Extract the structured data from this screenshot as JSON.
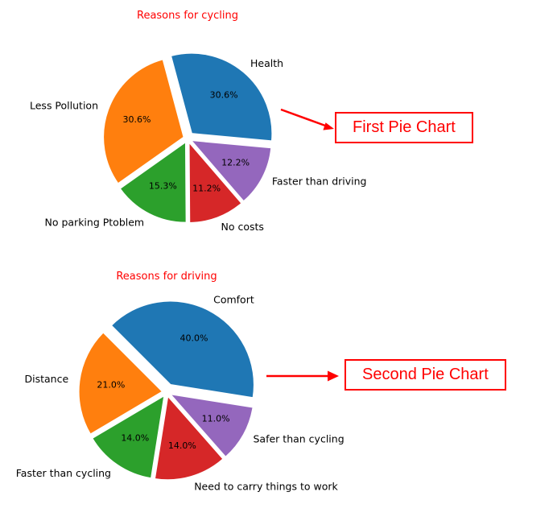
{
  "figure": {
    "background": "#ffffff",
    "accent_color": "#ff0000"
  },
  "chart_data": [
    {
      "type": "pie",
      "title": "Reasons for cycling",
      "title_color": "#ff0000",
      "labels": [
        "Health",
        "Faster than driving",
        "No costs",
        "No parking Ptoblem",
        "Less Pollution"
      ],
      "values": [
        30.6,
        12.2,
        11.2,
        15.3,
        30.6
      ],
      "pct_labels": [
        "30.6%",
        "12.2%",
        "11.2%",
        "15.3%",
        "30.6%"
      ],
      "colors": [
        "#1f77b4",
        "#9467bd",
        "#d62728",
        "#2ca02c",
        "#ff7f0e"
      ],
      "explode": [
        0.08,
        0.05,
        0.05,
        0.05,
        0.05
      ],
      "start_angle": 105,
      "clockwise": true,
      "legend": "none",
      "annotation": "First Pie Chart"
    },
    {
      "type": "pie",
      "title": "Reasons for driving",
      "title_color": "#ff0000",
      "labels": [
        "Comfort",
        "Safer than cycling",
        "Need to carry things to work",
        "Faster than cycling",
        "Distance"
      ],
      "values": [
        40.0,
        11.0,
        14.0,
        14.0,
        21.0
      ],
      "pct_labels": [
        "40.0%",
        "11.0%",
        "14.0%",
        "14.0%",
        "21.0%"
      ],
      "colors": [
        "#1f77b4",
        "#9467bd",
        "#d62728",
        "#2ca02c",
        "#ff7f0e"
      ],
      "explode": [
        0.1,
        0.05,
        0.05,
        0.05,
        0.05
      ],
      "start_angle": 135,
      "clockwise": true,
      "legend": "none",
      "annotation": "Second Pie Chart"
    }
  ],
  "annotations": {
    "color": "#ff0000",
    "box1_label": "First Pie Chart",
    "box2_label": "Second Pie Chart"
  }
}
